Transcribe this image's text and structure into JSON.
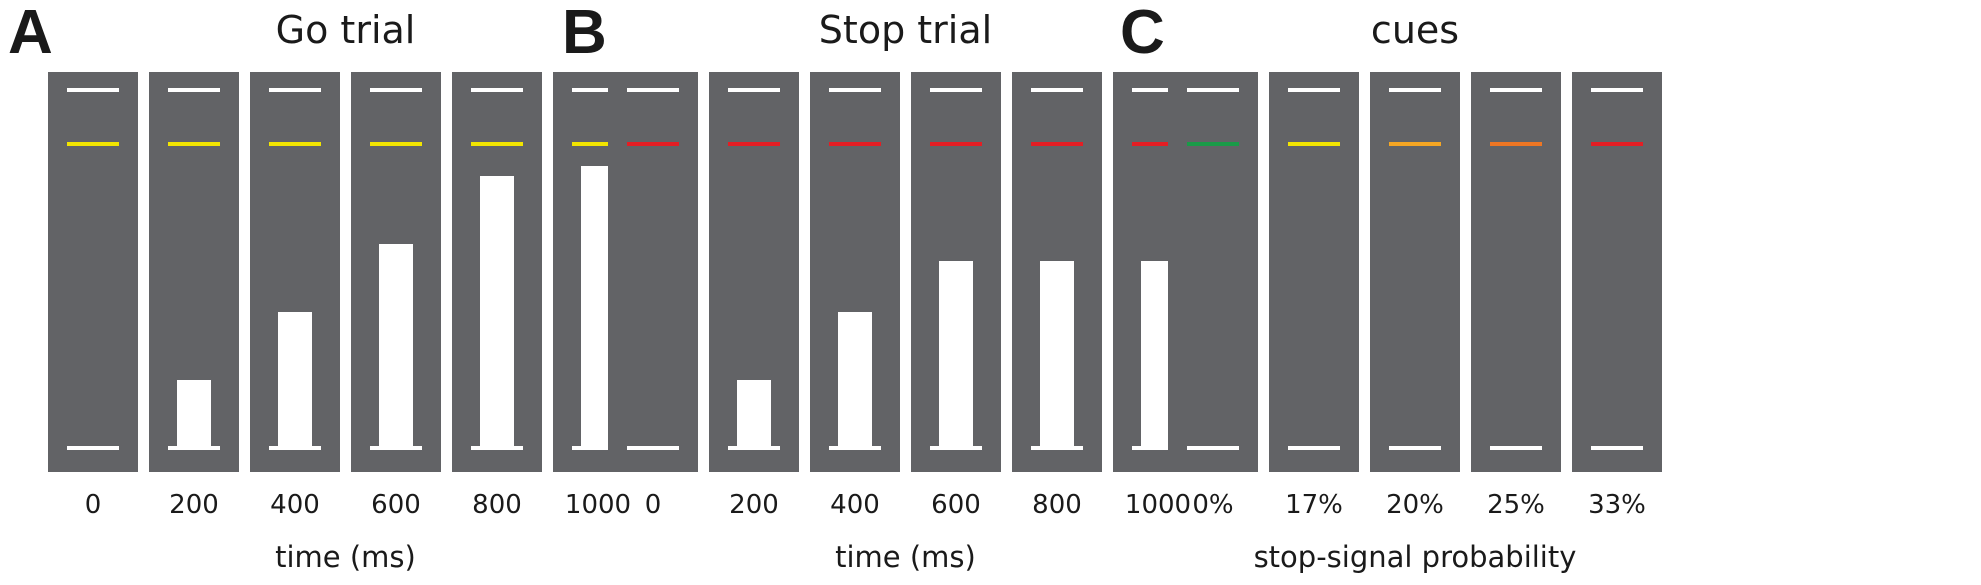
{
  "colors": {
    "panel_bg": "#626366",
    "bar": "#ffffff",
    "marker": "#ffffff"
  },
  "panels": [
    {
      "letter": "A",
      "title": "Go trial",
      "xlabel": "time (ms)",
      "columns": [
        {
          "tick": "0",
          "cue_color": "#f2e500",
          "bar_fraction": 0.0
        },
        {
          "tick": "200",
          "cue_color": "#f2e500",
          "bar_fraction": 0.2
        },
        {
          "tick": "400",
          "cue_color": "#f2e500",
          "bar_fraction": 0.4
        },
        {
          "tick": "600",
          "cue_color": "#f2e500",
          "bar_fraction": 0.6
        },
        {
          "tick": "800",
          "cue_color": "#f2e500",
          "bar_fraction": 0.8
        },
        {
          "tick": "1000",
          "cue_color": "#f2e500",
          "bar_fraction": 0.83
        }
      ]
    },
    {
      "letter": "B",
      "title": "Stop trial",
      "xlabel": "time (ms)",
      "columns": [
        {
          "tick": "0",
          "cue_color": "#e31e24",
          "bar_fraction": 0.0
        },
        {
          "tick": "200",
          "cue_color": "#e31e24",
          "bar_fraction": 0.2
        },
        {
          "tick": "400",
          "cue_color": "#e31e24",
          "bar_fraction": 0.4
        },
        {
          "tick": "600",
          "cue_color": "#e31e24",
          "bar_fraction": 0.55
        },
        {
          "tick": "800",
          "cue_color": "#e31e24",
          "bar_fraction": 0.55
        },
        {
          "tick": "1000",
          "cue_color": "#e31e24",
          "bar_fraction": 0.55
        }
      ]
    },
    {
      "letter": "C",
      "title": "cues",
      "xlabel": "stop-signal probability",
      "columns": [
        {
          "tick": "0%",
          "cue_color": "#1a9a48",
          "bar_fraction": 0.0
        },
        {
          "tick": "17%",
          "cue_color": "#f2e500",
          "bar_fraction": 0.0
        },
        {
          "tick": "20%",
          "cue_color": "#f5a623",
          "bar_fraction": 0.0
        },
        {
          "tick": "25%",
          "cue_color": "#ee7623",
          "bar_fraction": 0.0
        },
        {
          "tick": "33%",
          "cue_color": "#e31e24",
          "bar_fraction": 0.0
        }
      ]
    }
  ]
}
